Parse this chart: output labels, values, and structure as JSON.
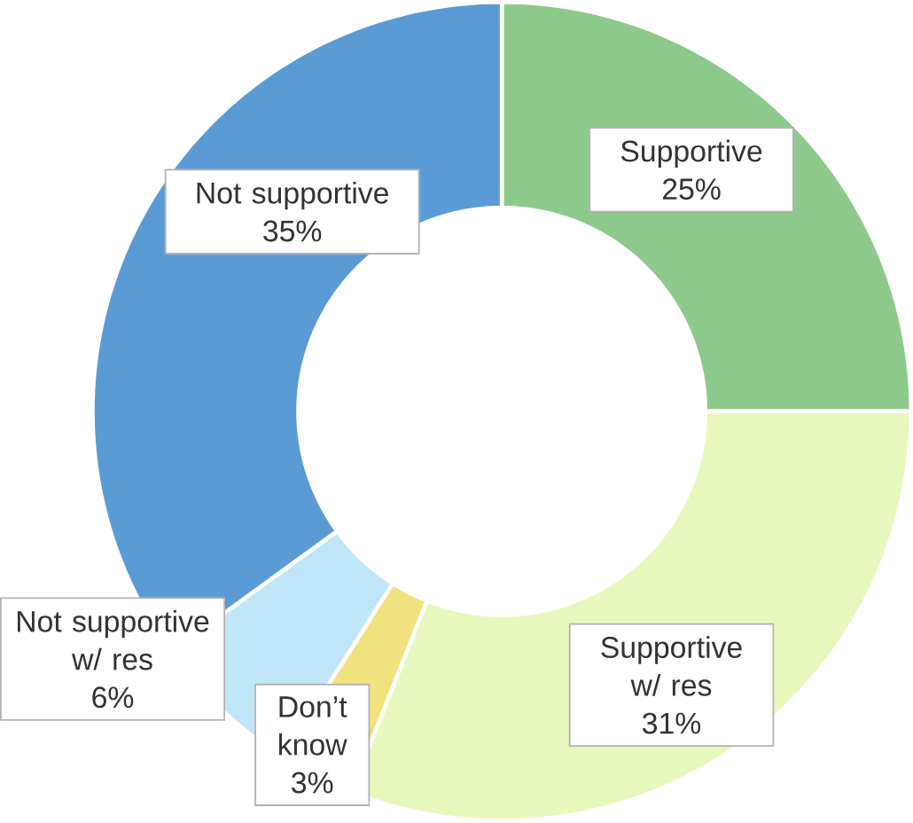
{
  "chart_data": {
    "type": "donut",
    "categories": [
      "Supportive",
      "Supportive w/ res",
      "Don’t know",
      "Not supportive w/ res",
      "Not supportive"
    ],
    "values": [
      25,
      31,
      3,
      6,
      35
    ],
    "value_labels": [
      "25%",
      "31%",
      "3%",
      "6%",
      "35%"
    ],
    "colors": [
      "#8dc98b",
      "#e8f8bd",
      "#f0e27c",
      "#bfe6f8",
      "#5b9bd5"
    ]
  }
}
